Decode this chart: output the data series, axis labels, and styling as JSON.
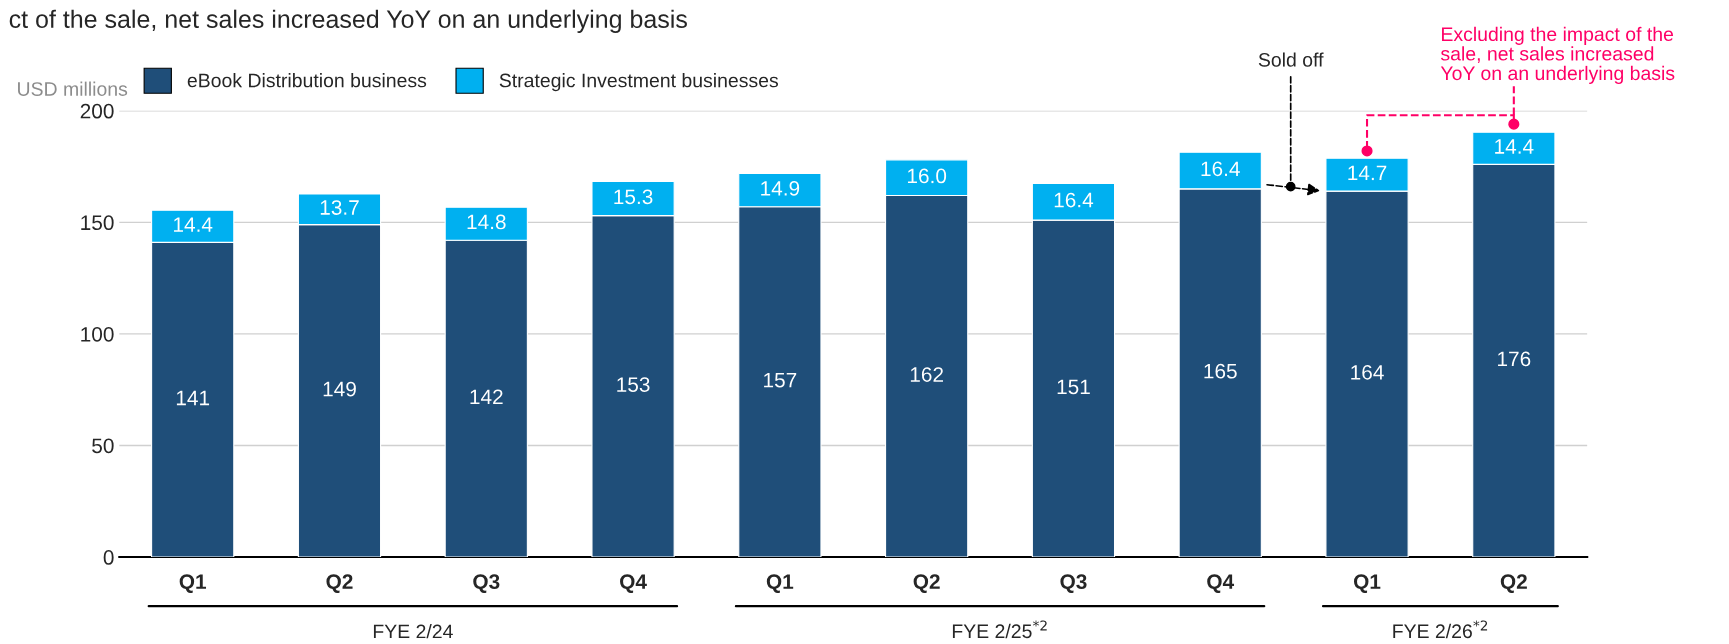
{
  "chart_data": {
    "type": "bar",
    "stacked": true,
    "title": "ct of the sale, net sales increased YoY on an underlying basis",
    "ylabel": "USD millions",
    "categories": [
      "Q1",
      "Q2",
      "Q3",
      "Q4",
      "Q1",
      "Q2",
      "Q3",
      "Q4",
      "Q1",
      "Q2"
    ],
    "series": [
      {
        "name": "eBook Distribution business",
        "color": "#1f4e79",
        "values": [
          141,
          149,
          142,
          153,
          157,
          162,
          151,
          165,
          164,
          176
        ],
        "value_labels": [
          "141",
          "149",
          "142",
          "153",
          "157",
          "162",
          "151",
          "165",
          "164",
          "176"
        ]
      },
      {
        "name": "Strategic Investment businesses",
        "color": "#00b0f0",
        "values": [
          14.4,
          13.7,
          14.8,
          15.3,
          14.9,
          16.0,
          16.4,
          16.4,
          14.7,
          14.4
        ],
        "value_labels": [
          "14.4",
          "13.7",
          "14.8",
          "15.3",
          "14.9",
          "16.0",
          "16.4",
          "16.4",
          "14.7",
          "14.4"
        ]
      }
    ],
    "ylim": [
      0,
      200
    ],
    "yticks": [
      0,
      50,
      100,
      150,
      200
    ],
    "grid": "y",
    "legend": "top left",
    "annotations": [
      "FYE 2/24",
      "FYE 2/25$^{*2}$",
      "FYE 2/26$^{*2}$",
      "Sold off",
      "Excluding the impact of the\nsale, net sales increased\nYoY on an underlying basis"
    ]
  }
}
